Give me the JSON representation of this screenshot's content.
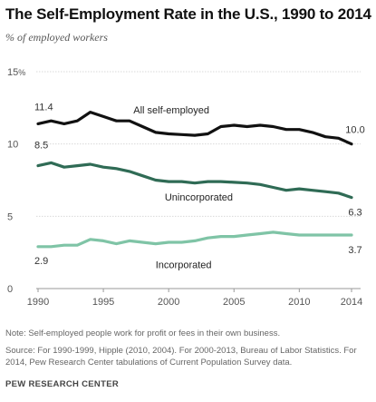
{
  "header": {
    "title": "The Self-Employment Rate in the U.S., 1990 to 2014",
    "subtitle": "% of employed workers"
  },
  "chart_data": {
    "type": "line",
    "title": "The Self-Employment Rate in the U.S., 1990 to 2014",
    "subtitle": "% of employed workers",
    "xlabel": "",
    "ylabel": "",
    "xlim": [
      1990,
      2014
    ],
    "ylim": [
      0,
      15
    ],
    "x_ticks": [
      1990,
      1995,
      2000,
      2005,
      2010,
      2014
    ],
    "y_ticks": [
      0,
      5,
      10,
      15
    ],
    "y_tick_labels": [
      "0",
      "5",
      "10",
      "15"
    ],
    "y_unit": "%",
    "grid": "horizontal",
    "x": [
      1990,
      1991,
      1992,
      1993,
      1994,
      1995,
      1996,
      1997,
      1998,
      1999,
      2000,
      2001,
      2002,
      2003,
      2004,
      2005,
      2006,
      2007,
      2008,
      2009,
      2010,
      2011,
      2012,
      2013,
      2014
    ],
    "series": [
      {
        "name": "All self-employed",
        "color": "#111111",
        "values": [
          11.4,
          11.6,
          11.4,
          11.6,
          12.2,
          11.9,
          11.6,
          11.6,
          11.2,
          10.8,
          10.7,
          10.65,
          10.6,
          10.7,
          11.2,
          11.3,
          11.2,
          11.3,
          11.2,
          11.0,
          11.0,
          10.8,
          10.5,
          10.4,
          10.0
        ],
        "start_label": "11.4",
        "end_label": "10.0"
      },
      {
        "name": "Unincorporated",
        "color": "#2f6b55",
        "values": [
          8.5,
          8.7,
          8.4,
          8.5,
          8.6,
          8.4,
          8.3,
          8.1,
          7.8,
          7.5,
          7.4,
          7.4,
          7.3,
          7.4,
          7.4,
          7.35,
          7.3,
          7.2,
          7.0,
          6.8,
          6.9,
          6.8,
          6.7,
          6.6,
          6.3
        ],
        "start_label": "8.5",
        "end_label": "6.3"
      },
      {
        "name": "Incorporated",
        "color": "#7fc4a6",
        "values": [
          2.9,
          2.9,
          3.0,
          3.0,
          3.4,
          3.3,
          3.1,
          3.3,
          3.2,
          3.1,
          3.2,
          3.2,
          3.3,
          3.5,
          3.6,
          3.6,
          3.7,
          3.8,
          3.9,
          3.8,
          3.7,
          3.7,
          3.7,
          3.7,
          3.7
        ],
        "start_label": "2.9",
        "end_label": "3.7"
      }
    ]
  },
  "footer": {
    "note": "Note: Self-employed people work for profit or fees in their own business.",
    "source": "Source: For 1990-1999, Hipple (2010, 2004). For 2000-2013,  Bureau of Labor Statistics. For 2014, Pew Research Center tabulations of Current Population Survey data.",
    "org": "PEW RESEARCH CENTER"
  }
}
